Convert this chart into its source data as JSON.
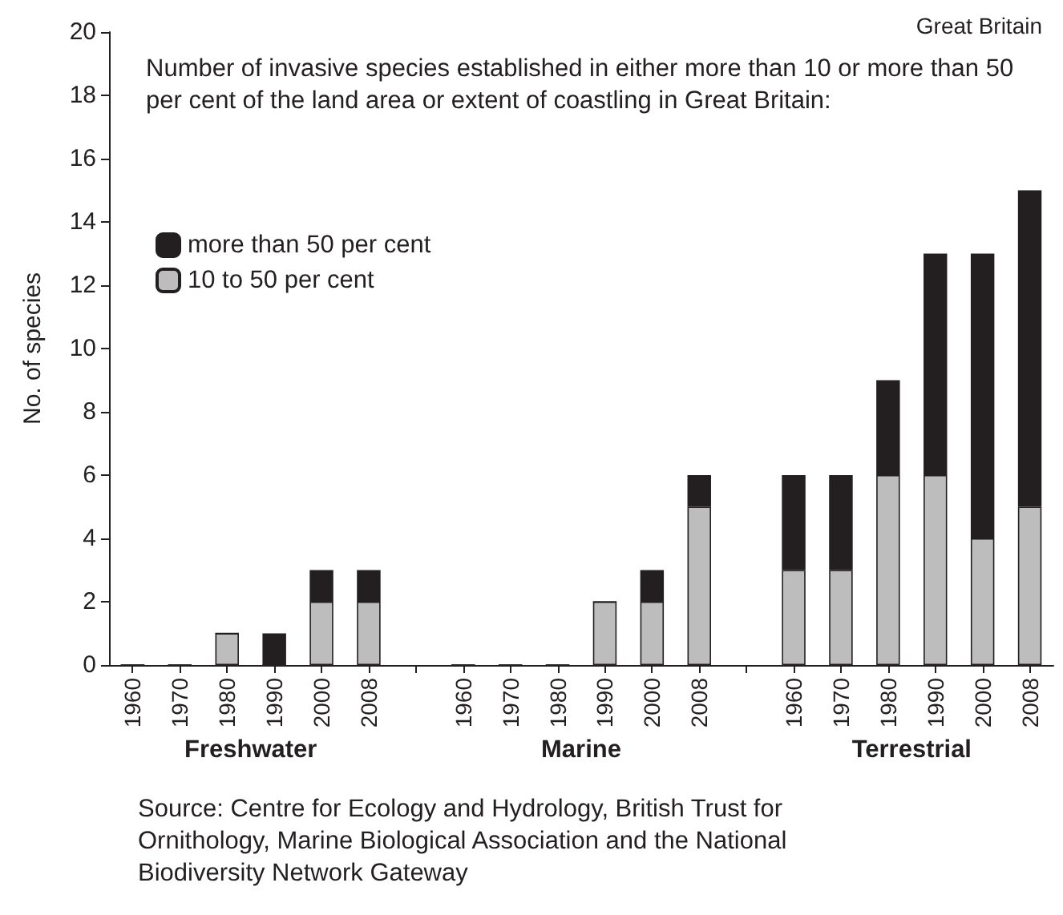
{
  "chart_data": {
    "type": "bar",
    "title": "Great Britain",
    "subtitle": "Number of invasive species established in either more than 10 or more than 50 per cent of the land area or extent of coastling in Great Britain:",
    "ylabel": "No. of species",
    "categories": [
      "1960",
      "1970",
      "1980",
      "1990",
      "2000",
      "2008",
      null,
      "1960",
      "1970",
      "1980",
      "1990",
      "2000",
      "2008",
      null,
      "1960",
      "1970",
      "1980",
      "1990",
      "2000",
      "2008"
    ],
    "stacked": true,
    "series": [
      {
        "name": "10 to 50 per cent",
        "color": "#bdbdbd",
        "values": [
          0,
          0,
          1,
          0,
          2,
          2,
          null,
          0,
          0,
          0,
          2,
          2,
          5,
          null,
          3,
          3,
          6,
          6,
          4,
          5
        ]
      },
      {
        "name": "more than 50 per cent",
        "color": "#231f20",
        "values": [
          0,
          0,
          0,
          1,
          1,
          1,
          null,
          0,
          0,
          0,
          0,
          1,
          1,
          null,
          3,
          3,
          3,
          7,
          9,
          10
        ]
      }
    ],
    "ylim": [
      0,
      20
    ],
    "yticks": [
      0,
      2,
      4,
      6,
      8,
      10,
      12,
      14,
      16,
      18,
      20
    ],
    "grid": false,
    "legend": "top left",
    "annotations": [
      "Freshwater",
      "Marine",
      "Terrestrial",
      "Source: Centre for Ecology and Hydrology, British Trust for Ornithology, Marine Biological Association and the National Biodiversity Network Gateway"
    ]
  }
}
